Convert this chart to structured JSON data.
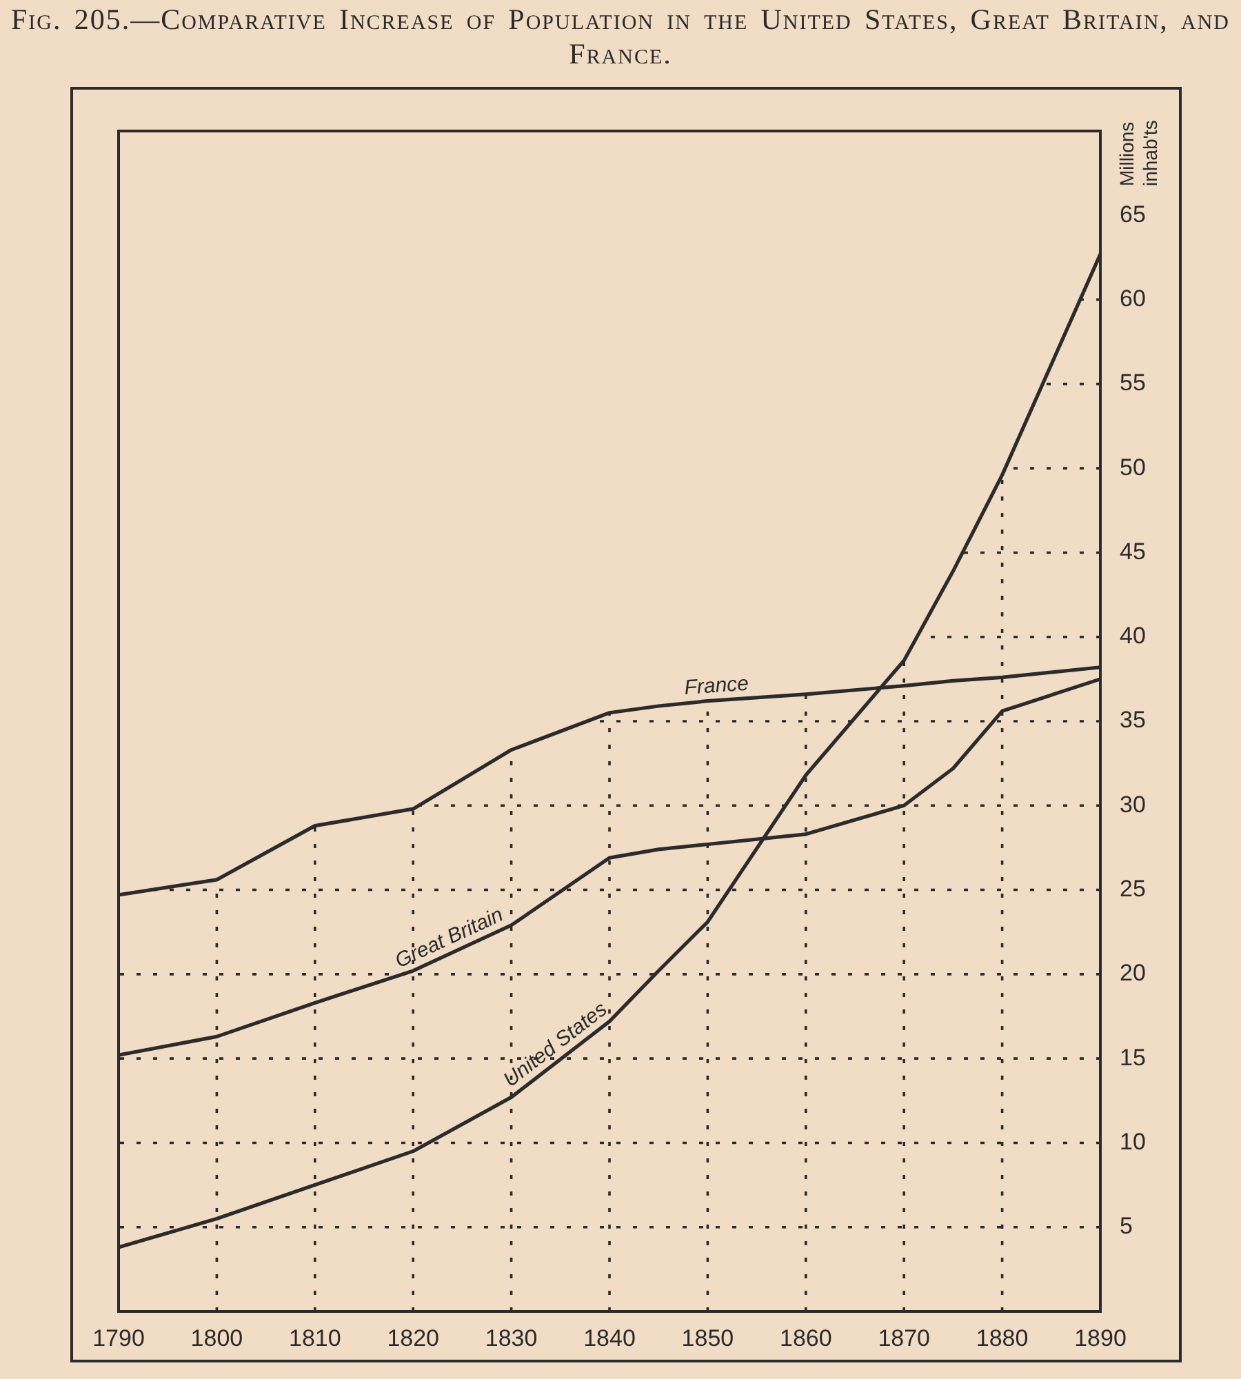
{
  "chart_data": {
    "type": "line",
    "title": "Fig. 205.—Comparative Increase of Population in the United States, Great Britain, and France.",
    "ylabel": "Millions inhab'ts",
    "x": [
      1790,
      1800,
      1810,
      1820,
      1830,
      1840,
      1845,
      1850,
      1860,
      1870,
      1875,
      1880,
      1890
    ],
    "series": [
      {
        "name": "France",
        "color": "#2b2b2b",
        "values": [
          24.7,
          25.6,
          28.8,
          29.8,
          33.3,
          35.5,
          35.9,
          36.2,
          36.6,
          37.1,
          37.4,
          37.6,
          38.2
        ]
      },
      {
        "name": "Great Britain",
        "color": "#2b2b2b",
        "values": [
          15.2,
          16.3,
          18.3,
          20.2,
          22.9,
          26.9,
          27.4,
          27.7,
          28.3,
          30.0,
          32.2,
          35.6,
          37.5
        ]
      },
      {
        "name": "United States",
        "color": "#2b2b2b",
        "values": [
          3.8,
          5.5,
          7.5,
          9.5,
          12.7,
          17.2,
          20.2,
          23.1,
          31.8,
          38.6,
          43.9,
          49.6,
          62.7
        ]
      }
    ],
    "xlim": [
      1790,
      1890
    ],
    "ylim": [
      0,
      70
    ],
    "xticks": [
      1790,
      1800,
      1810,
      1820,
      1830,
      1840,
      1850,
      1860,
      1870,
      1880,
      1890
    ],
    "yticks": [
      5,
      10,
      15,
      20,
      25,
      30,
      35,
      40,
      45,
      50,
      55,
      60,
      65
    ],
    "grid": true
  }
}
